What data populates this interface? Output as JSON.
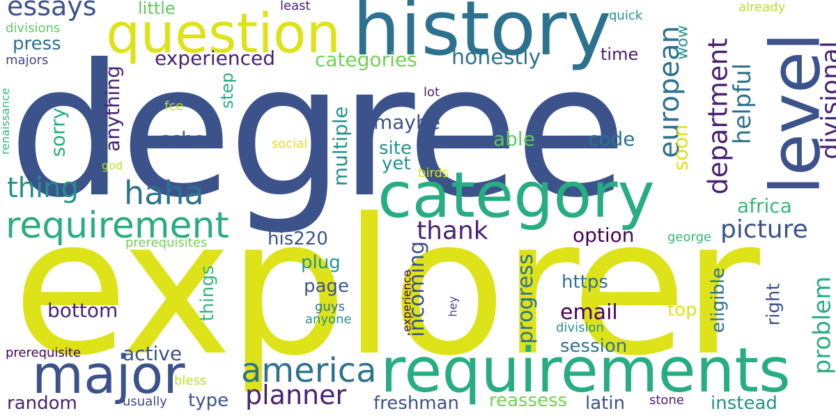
{
  "words": {
    "degree": "degree",
    "explorer": "explorer",
    "history": "history",
    "question": "question",
    "category": "category",
    "requirements": "requirements",
    "level": "level",
    "major": "major",
    "requirement": "requirement",
    "america": "america",
    "european": "european",
    "department": "department",
    "divisional": "divisional",
    "helpful": "helpful",
    "haha": "haha",
    "thing": "thing",
    "essays": "essays",
    "planner": "planner",
    "picture": "picture",
    "thank": "thank",
    "problem": "problem",
    "incoming": "incoming",
    "progress": "progress",
    "email": "email",
    "categories": "categories",
    "honestly": "honestly",
    "experienced": "experienced",
    "anything": "anything",
    "multiple": "multiple",
    "sorry": "sorry",
    "school": "school",
    "maybe": "maybe",
    "site": "site",
    "yet": "yet",
    "able": "able",
    "code": "code",
    "soon": "soon",
    "africa": "africa",
    "option": "option",
    "his220": "his220",
    "plug": "plug",
    "page": "page",
    "things": "things",
    "bottom": "bottom",
    "active": "active",
    "random": "random",
    "type": "type",
    "freshman": "freshman",
    "reassess": "reassess",
    "latin": "latin",
    "instead": "instead",
    "session": "session",
    "https": "https",
    "top": "top",
    "eligible": "eligible",
    "right": "right",
    "press": "press",
    "little": "little",
    "time": "time",
    "step": "step",
    "wow": "wow",
    "quick": "quick",
    "least": "least",
    "already": "already",
    "divisions": "divisions",
    "majors": "majors",
    "renaissance": "renaissance",
    "fce": "fce",
    "lot": "lot",
    "social": "social",
    "god": "god",
    "birds": "birds",
    "prerequisites": "prerequisites",
    "george": "george",
    "guys": "guys",
    "anyone": "anyone",
    "experience": "experience",
    "hey": "hey",
    "division": "division",
    "prerequisite": "prerequisite",
    "bless": "bless",
    "usually": "usually",
    "stone": "stone"
  }
}
